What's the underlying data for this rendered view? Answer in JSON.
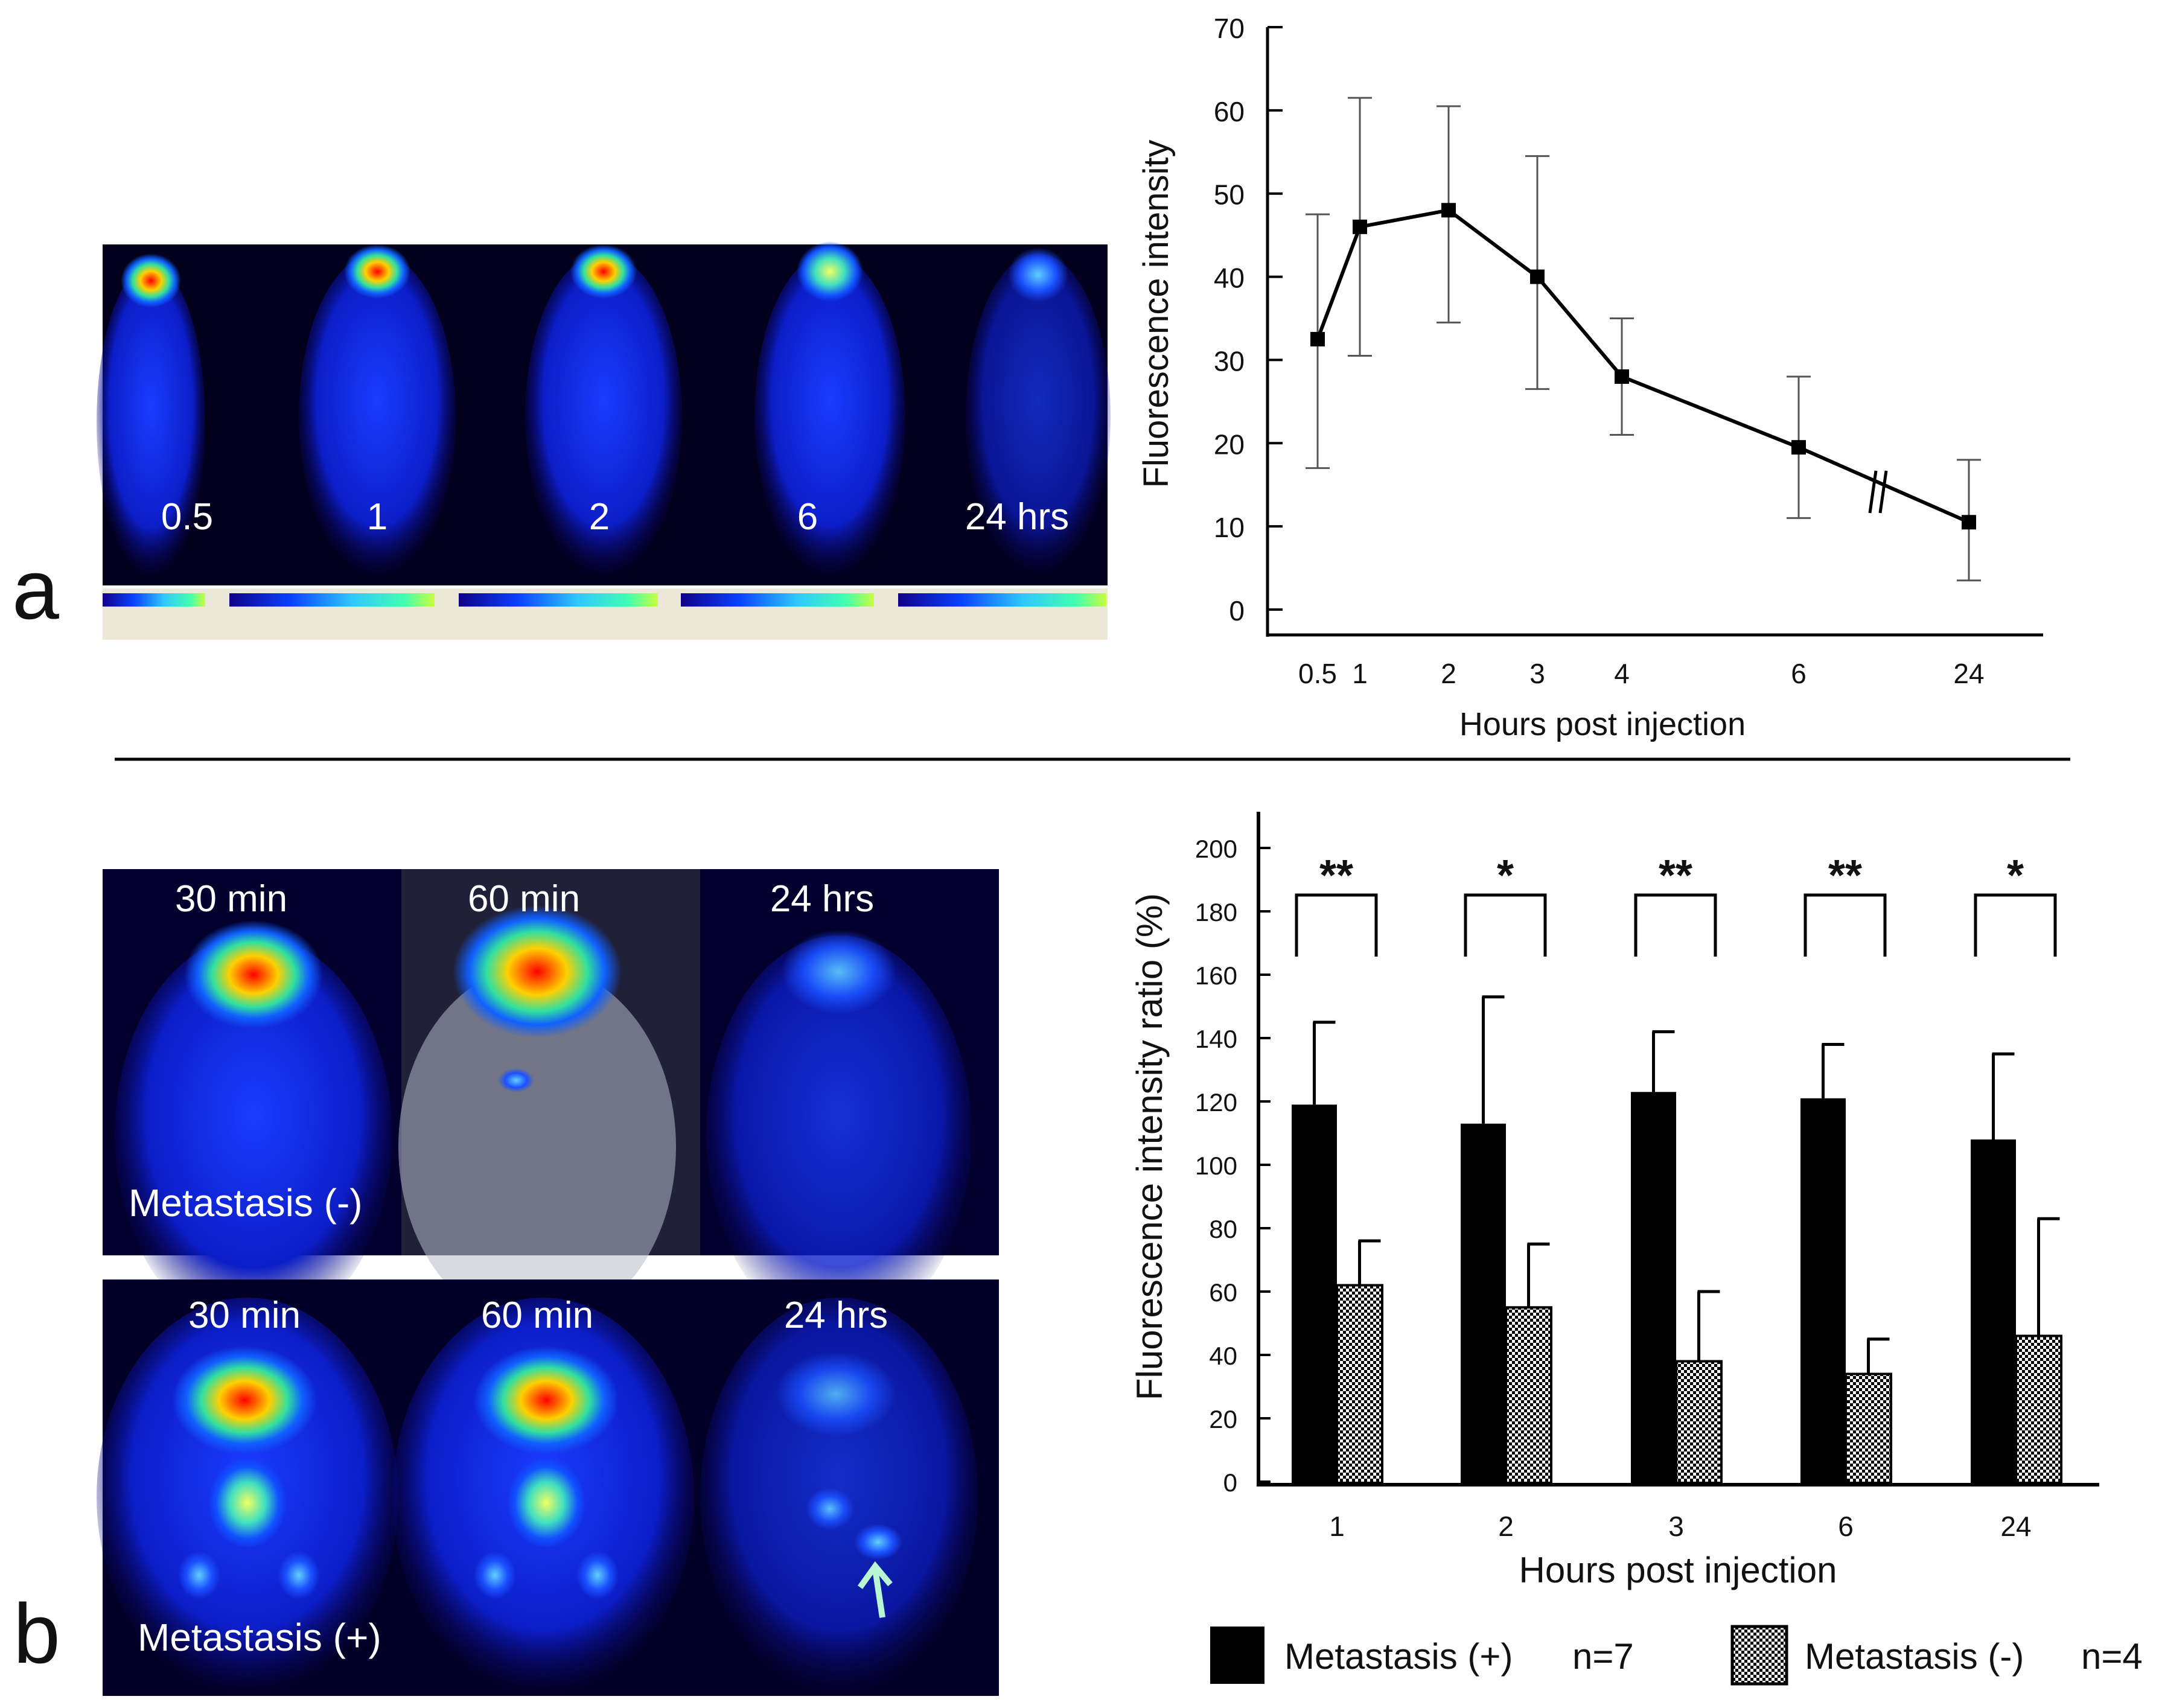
{
  "panel_labels": {
    "a": "a",
    "b": "b"
  },
  "panel_a": {
    "time_labels": [
      "0.5",
      "1",
      "2",
      "6",
      "24 hrs"
    ]
  },
  "panel_b": {
    "row_top": {
      "times": [
        "30 min",
        "60 min",
        "24 hrs"
      ],
      "label": "Metastasis (-)"
    },
    "row_bottom": {
      "times": [
        "30 min",
        "60 min",
        "24 hrs"
      ],
      "label": "Metastasis (+)"
    },
    "arrow_icon": "up-arrow-icon"
  },
  "colors": {
    "ink": "#000000",
    "arrow": "#b8f5d2",
    "background_image": "#03002e"
  },
  "chart_data": [
    {
      "type": "line",
      "x": [
        0.5,
        1,
        2,
        3,
        4,
        6,
        24
      ],
      "x_tick_labels": [
        "0.5",
        "1",
        "2",
        "3",
        "4",
        "6",
        "24"
      ],
      "values": [
        32.5,
        46,
        48,
        40,
        28,
        19.5,
        10.5
      ],
      "err_low": [
        17,
        30.5,
        34.5,
        26.5,
        21,
        11,
        3.5
      ],
      "err_high": [
        47.5,
        61.5,
        60.5,
        54.5,
        35,
        28,
        18
      ],
      "y_ticks": [
        "0",
        "10",
        "20",
        "30",
        "40",
        "50",
        "60",
        "70"
      ],
      "ylim": [
        0,
        70
      ],
      "xlabel": "Hours post injection",
      "ylabel": "Fluorescence intensity",
      "axis_break_between": [
        "6",
        "24"
      ]
    },
    {
      "type": "bar",
      "categories": [
        "1",
        "2",
        "3",
        "6",
        "24"
      ],
      "series": [
        {
          "name": "Metastasis (+)",
          "values": [
            119,
            113,
            123,
            121,
            108
          ],
          "errors": [
            26,
            40,
            19,
            17,
            27
          ],
          "fill": "#000000"
        },
        {
          "name": "Metastasis (-)",
          "values": [
            62,
            55,
            38,
            34,
            46
          ],
          "errors": [
            14,
            20,
            22,
            11,
            37
          ],
          "fill": "checkered"
        }
      ],
      "significance": [
        "**",
        "*",
        "**",
        "**",
        "*"
      ],
      "y_ticks": [
        "0",
        "20",
        "40",
        "60",
        "80",
        "100",
        "120",
        "140",
        "160",
        "180",
        "200"
      ],
      "ylim": [
        0,
        200
      ],
      "xlabel": "Hours post injection",
      "ylabel": "Fluorescence intensity ratio (%)",
      "legend": [
        {
          "label": "Metastasis (+)",
          "n": "n=7"
        },
        {
          "label": "Metastasis (-)",
          "n": "n=4"
        }
      ]
    }
  ]
}
